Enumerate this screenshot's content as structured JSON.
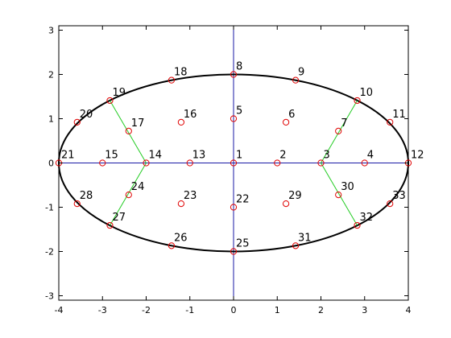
{
  "chart_data": {
    "type": "scatter",
    "title": "",
    "xlabel": "",
    "ylabel": "",
    "xlim": [
      -4,
      4
    ],
    "ylim": [
      -3.1,
      3.1
    ],
    "xticks": [
      -4,
      -3,
      -2,
      -1,
      0,
      1,
      2,
      3,
      4
    ],
    "yticks": [
      -3,
      -2,
      -1,
      0,
      1,
      2,
      3
    ],
    "grid": false,
    "legend": "none",
    "ellipse": {
      "center": [
        0,
        0
      ],
      "semi_axis_x": 4,
      "semi_axis_y": 2
    },
    "axis_lines": [
      {
        "from": [
          -4,
          0
        ],
        "to": [
          4,
          0
        ]
      },
      {
        "from": [
          0,
          -3.1
        ],
        "to": [
          0,
          3.1
        ]
      }
    ],
    "nodes": [
      {
        "label": "1",
        "x": 0,
        "y": 0
      },
      {
        "label": "2",
        "x": 1,
        "y": 0
      },
      {
        "label": "3",
        "x": 2,
        "y": 0
      },
      {
        "label": "4",
        "x": 3,
        "y": 0
      },
      {
        "label": "5",
        "x": 0,
        "y": 1
      },
      {
        "label": "6",
        "x": 1.2,
        "y": 0.92
      },
      {
        "label": "7",
        "x": 2.4,
        "y": 0.72
      },
      {
        "label": "8",
        "x": 0,
        "y": 2
      },
      {
        "label": "9",
        "x": 1.42,
        "y": 1.87
      },
      {
        "label": "10",
        "x": 2.83,
        "y": 1.41
      },
      {
        "label": "11",
        "x": 3.58,
        "y": 0.92
      },
      {
        "label": "12",
        "x": 4,
        "y": 0
      },
      {
        "label": "13",
        "x": -1,
        "y": 0
      },
      {
        "label": "14",
        "x": -2,
        "y": 0
      },
      {
        "label": "15",
        "x": -3,
        "y": 0
      },
      {
        "label": "16",
        "x": -1.2,
        "y": 0.92
      },
      {
        "label": "17",
        "x": -2.4,
        "y": 0.72
      },
      {
        "label": "18",
        "x": -1.42,
        "y": 1.87
      },
      {
        "label": "19",
        "x": -2.83,
        "y": 1.41
      },
      {
        "label": "20",
        "x": -3.58,
        "y": 0.92
      },
      {
        "label": "21",
        "x": -4,
        "y": 0
      },
      {
        "label": "22",
        "x": 0,
        "y": -1
      },
      {
        "label": "23",
        "x": -1.2,
        "y": -0.92
      },
      {
        "label": "24",
        "x": -2.4,
        "y": -0.72
      },
      {
        "label": "25",
        "x": 0,
        "y": -2
      },
      {
        "label": "26",
        "x": -1.42,
        "y": -1.87
      },
      {
        "label": "27",
        "x": -2.83,
        "y": -1.41
      },
      {
        "label": "28",
        "x": -3.58,
        "y": -0.92
      },
      {
        "label": "29",
        "x": 1.2,
        "y": -0.92
      },
      {
        "label": "30",
        "x": 2.4,
        "y": -0.72
      },
      {
        "label": "31",
        "x": 1.42,
        "y": -1.87
      },
      {
        "label": "32",
        "x": 2.83,
        "y": -1.41
      },
      {
        "label": "33",
        "x": 3.58,
        "y": -0.92
      }
    ],
    "green_segments": [
      {
        "from": [
          2,
          0
        ],
        "to": [
          2.83,
          1.41
        ]
      },
      {
        "from": [
          2,
          0
        ],
        "to": [
          2.83,
          -1.41
        ]
      },
      {
        "from": [
          -2,
          0
        ],
        "to": [
          -2.83,
          1.41
        ]
      },
      {
        "from": [
          -2,
          0
        ],
        "to": [
          -2.83,
          -1.41
        ]
      }
    ],
    "colors": {
      "ellipse": "#000000",
      "axis_lines": "#1a1aa6",
      "markers": "#e00000",
      "segments": "#22cc22",
      "frame": "#000000"
    }
  }
}
